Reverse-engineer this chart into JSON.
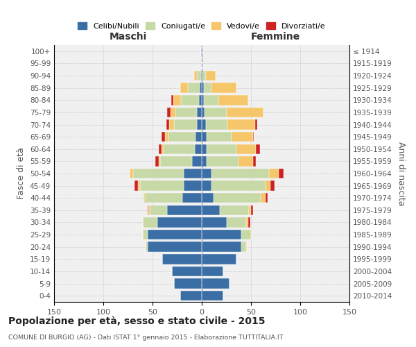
{
  "age_groups": [
    "0-4",
    "5-9",
    "10-14",
    "15-19",
    "20-24",
    "25-29",
    "30-34",
    "35-39",
    "40-44",
    "45-49",
    "50-54",
    "55-59",
    "60-64",
    "65-69",
    "70-74",
    "75-79",
    "80-84",
    "85-89",
    "90-94",
    "95-99",
    "100+"
  ],
  "birth_years": [
    "2010-2014",
    "2005-2009",
    "2000-2004",
    "1995-1999",
    "1990-1994",
    "1985-1989",
    "1980-1984",
    "1975-1979",
    "1970-1974",
    "1965-1969",
    "1960-1964",
    "1955-1959",
    "1950-1954",
    "1945-1949",
    "1940-1944",
    "1935-1939",
    "1930-1934",
    "1925-1929",
    "1920-1924",
    "1915-1919",
    "≤ 1914"
  ],
  "maschi": {
    "celibi": [
      22,
      28,
      30,
      40,
      55,
      55,
      45,
      35,
      20,
      18,
      18,
      10,
      7,
      6,
      5,
      5,
      3,
      2,
      1,
      0,
      1
    ],
    "coniugati": [
      0,
      0,
      0,
      0,
      2,
      5,
      15,
      18,
      38,
      45,
      52,
      32,
      32,
      28,
      23,
      22,
      18,
      12,
      4,
      0,
      0
    ],
    "vedovi": [
      0,
      0,
      0,
      0,
      0,
      0,
      0,
      1,
      1,
      2,
      3,
      2,
      2,
      3,
      5,
      5,
      8,
      8,
      3,
      0,
      0
    ],
    "divorziati": [
      0,
      0,
      0,
      0,
      0,
      0,
      0,
      1,
      0,
      3,
      0,
      3,
      3,
      4,
      3,
      3,
      2,
      0,
      0,
      0,
      0
    ]
  },
  "femmine": {
    "nubili": [
      22,
      28,
      22,
      35,
      40,
      40,
      25,
      18,
      12,
      10,
      10,
      5,
      5,
      5,
      4,
      3,
      2,
      2,
      1,
      0,
      1
    ],
    "coniugate": [
      0,
      0,
      0,
      0,
      5,
      10,
      20,
      30,
      48,
      55,
      58,
      32,
      30,
      25,
      22,
      22,
      15,
      8,
      3,
      0,
      0
    ],
    "vedove": [
      0,
      0,
      0,
      0,
      1,
      1,
      2,
      2,
      5,
      5,
      10,
      15,
      20,
      22,
      28,
      38,
      30,
      25,
      10,
      1,
      0
    ],
    "divorziate": [
      0,
      0,
      0,
      0,
      0,
      0,
      2,
      2,
      2,
      4,
      5,
      3,
      4,
      1,
      2,
      0,
      0,
      0,
      0,
      0,
      0
    ]
  },
  "colors": {
    "celibi": "#3A6EA5",
    "coniugati": "#C8D9A8",
    "vedovi": "#F5C76A",
    "divorziati": "#CC2222"
  },
  "legend_labels": [
    "Celibi/Nubili",
    "Coniugati/e",
    "Vedovi/e",
    "Divorziati/e"
  ],
  "title": "Popolazione per età, sesso e stato civile - 2015",
  "subtitle": "COMUNE DI BURGIO (AG) - Dati ISTAT 1° gennaio 2015 - Elaborazione TUTTITALIA.IT",
  "xlabel_left": "Maschi",
  "xlabel_right": "Femmine",
  "ylabel_left": "Fasce di età",
  "ylabel_right": "Anni di nascita",
  "xlim": 150,
  "bg_color": "#ffffff",
  "axes_bg_color": "#f0f0f0"
}
